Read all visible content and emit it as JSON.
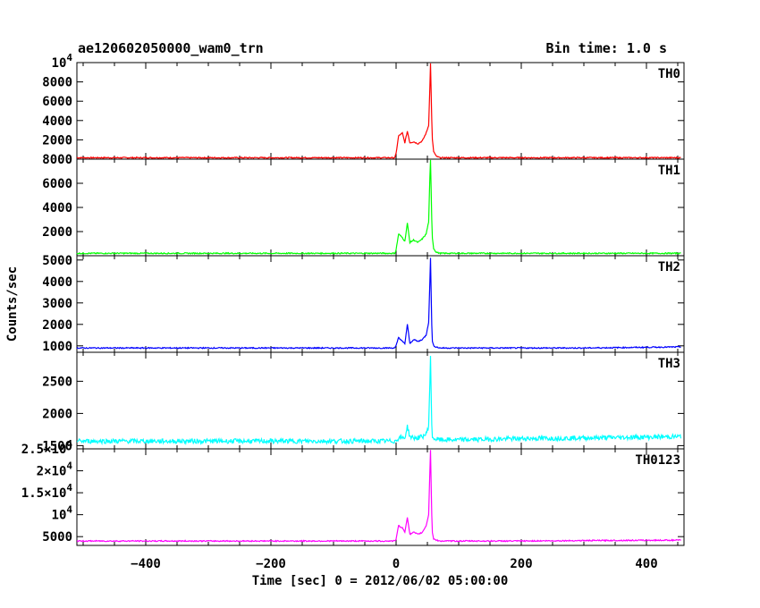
{
  "header": {
    "title": "ae120602050000_wam0_trn",
    "bin_time": "Bin time: 1.0 s"
  },
  "axes": {
    "xlabel": "Time [sec] 0 = 2012/06/02 05:00:00",
    "ylabel": "Counts/sec",
    "xlim": [
      -510,
      460
    ],
    "xticks": [
      -400,
      -200,
      0,
      200,
      400
    ]
  },
  "chart_data": [
    {
      "type": "line",
      "name": "TH0",
      "color": "#ff0000",
      "ylim": [
        0,
        10000
      ],
      "yticks": [
        {
          "v": 2000,
          "t": "2000"
        },
        {
          "v": 4000,
          "t": "4000"
        },
        {
          "v": 6000,
          "t": "6000"
        },
        {
          "v": 8000,
          "t": "8000"
        },
        {
          "v": 10000,
          "t": "10^4"
        }
      ],
      "x": [
        -510,
        -300,
        -100,
        -2,
        0,
        4,
        10,
        14,
        18,
        22,
        28,
        35,
        42,
        48,
        52,
        54,
        55,
        56,
        57,
        58,
        60,
        64,
        70,
        100,
        200,
        300,
        455
      ],
      "y": [
        150,
        150,
        150,
        150,
        600,
        2400,
        2700,
        1700,
        2900,
        1700,
        1800,
        1600,
        1900,
        2700,
        3500,
        7500,
        9900,
        7000,
        4000,
        2000,
        800,
        300,
        150,
        150,
        150,
        150,
        150
      ]
    },
    {
      "type": "line",
      "name": "TH1",
      "color": "#00ff00",
      "ylim": [
        0,
        8000
      ],
      "yticks": [
        {
          "v": 2000,
          "t": "2000"
        },
        {
          "v": 4000,
          "t": "4000"
        },
        {
          "v": 6000,
          "t": "6000"
        },
        {
          "v": 8000,
          "t": "8000"
        }
      ],
      "x": [
        -510,
        -300,
        -100,
        -2,
        0,
        4,
        10,
        14,
        18,
        22,
        28,
        35,
        42,
        48,
        52,
        54,
        55,
        56,
        57,
        58,
        60,
        64,
        70,
        100,
        200,
        300,
        455
      ],
      "y": [
        200,
        200,
        200,
        200,
        500,
        1800,
        1500,
        1200,
        2700,
        1100,
        1300,
        1100,
        1400,
        1800,
        2800,
        6500,
        7900,
        5500,
        3000,
        1500,
        600,
        300,
        200,
        200,
        200,
        200,
        200
      ]
    },
    {
      "type": "line",
      "name": "TH2",
      "color": "#0000ff",
      "ylim": [
        700,
        5200
      ],
      "yticks": [
        {
          "v": 1000,
          "t": "1000"
        },
        {
          "v": 2000,
          "t": "2000"
        },
        {
          "v": 3000,
          "t": "3000"
        },
        {
          "v": 4000,
          "t": "4000"
        },
        {
          "v": 5000,
          "t": "5000"
        }
      ],
      "x": [
        -510,
        -300,
        -100,
        -2,
        0,
        4,
        10,
        14,
        18,
        22,
        28,
        35,
        42,
        48,
        52,
        54,
        55,
        56,
        57,
        58,
        60,
        64,
        70,
        100,
        200,
        300,
        455
      ],
      "y": [
        900,
        900,
        900,
        900,
        1000,
        1400,
        1200,
        1100,
        2000,
        1100,
        1300,
        1200,
        1300,
        1500,
        2100,
        4000,
        5100,
        3500,
        2000,
        1200,
        1000,
        950,
        900,
        900,
        900,
        900,
        950
      ]
    },
    {
      "type": "line",
      "name": "TH3",
      "color": "#00ffff",
      "ylim": [
        1450,
        2950
      ],
      "yticks": [
        {
          "v": 1500,
          "t": "1500"
        },
        {
          "v": 2000,
          "t": "2000"
        },
        {
          "v": 2500,
          "t": "2500"
        }
      ],
      "x": [
        -510,
        -300,
        -100,
        -2,
        0,
        4,
        10,
        14,
        18,
        22,
        28,
        35,
        42,
        48,
        52,
        54,
        55,
        56,
        57,
        58,
        60,
        64,
        70,
        100,
        200,
        300,
        455
      ],
      "y": [
        1570,
        1570,
        1570,
        1570,
        1580,
        1620,
        1620,
        1620,
        1800,
        1640,
        1620,
        1620,
        1640,
        1680,
        1800,
        2500,
        2900,
        2300,
        1800,
        1650,
        1610,
        1600,
        1590,
        1590,
        1610,
        1620,
        1640
      ]
    },
    {
      "type": "line",
      "name": "TH0123",
      "color": "#ff00ff",
      "ylim": [
        3000,
        25000
      ],
      "yticks": [
        {
          "v": 5000,
          "t": "5000"
        },
        {
          "v": 10000,
          "t": "10^4"
        },
        {
          "v": 15000,
          "t": "1.5x10^4"
        },
        {
          "v": 20000,
          "t": "2x10^4"
        },
        {
          "v": 25000,
          "t": "2.5x10^4"
        }
      ],
      "x": [
        -510,
        -300,
        -100,
        -2,
        0,
        4,
        10,
        14,
        18,
        22,
        28,
        35,
        42,
        48,
        52,
        54,
        55,
        56,
        57,
        58,
        60,
        64,
        70,
        100,
        200,
        300,
        455
      ],
      "y": [
        4000,
        4000,
        4000,
        4000,
        4500,
        7500,
        7000,
        6000,
        9500,
        5500,
        6000,
        5500,
        6000,
        7500,
        10000,
        20000,
        24800,
        17000,
        10000,
        6000,
        4500,
        4200,
        4000,
        4000,
        4000,
        4100,
        4200
      ]
    }
  ]
}
